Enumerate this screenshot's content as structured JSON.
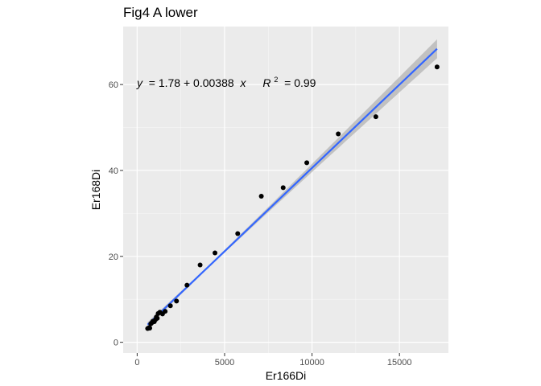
{
  "chart_data": {
    "type": "scatter",
    "title": "Fig4 A lower",
    "xlabel": "Er166Di",
    "ylabel": "Er168Di",
    "xlim": [
      -800,
      17800
    ],
    "ylim": [
      -2.5,
      73.5
    ],
    "x_ticks": [
      0,
      5000,
      10000,
      15000
    ],
    "y_ticks": [
      0,
      20,
      40,
      60
    ],
    "x_tick_labels": [
      "0",
      "5000",
      "10000",
      "15000"
    ],
    "y_tick_labels": [
      "0",
      "20",
      "40",
      "60"
    ],
    "grid": true,
    "legend": "none",
    "colors": {
      "panel": "#ebebeb",
      "grid_major": "#ffffff",
      "points": "#000000",
      "fit_line": "#3366ff",
      "confidence_band": "#b3b3b3"
    },
    "points": [
      {
        "x": 600,
        "y": 3.2
      },
      {
        "x": 680,
        "y": 3.4
      },
      {
        "x": 720,
        "y": 3.3
      },
      {
        "x": 780,
        "y": 4.3
      },
      {
        "x": 850,
        "y": 4.6
      },
      {
        "x": 900,
        "y": 4.9
      },
      {
        "x": 980,
        "y": 4.8
      },
      {
        "x": 1050,
        "y": 5.3
      },
      {
        "x": 1100,
        "y": 5.9
      },
      {
        "x": 1150,
        "y": 5.6
      },
      {
        "x": 1200,
        "y": 6.7
      },
      {
        "x": 1300,
        "y": 7.0
      },
      {
        "x": 1450,
        "y": 6.6
      },
      {
        "x": 1600,
        "y": 7.2
      },
      {
        "x": 1900,
        "y": 8.5
      },
      {
        "x": 2250,
        "y": 9.6
      },
      {
        "x": 2850,
        "y": 13.3
      },
      {
        "x": 3600,
        "y": 18.0
      },
      {
        "x": 4450,
        "y": 20.8
      },
      {
        "x": 5750,
        "y": 25.3
      },
      {
        "x": 7100,
        "y": 34.0
      },
      {
        "x": 8350,
        "y": 36.0
      },
      {
        "x": 9700,
        "y": 41.8
      },
      {
        "x": 11500,
        "y": 48.5
      },
      {
        "x": 13650,
        "y": 52.5
      },
      {
        "x": 17150,
        "y": 64.1
      }
    ],
    "fit": {
      "method": "lm",
      "intercept": 1.78,
      "slope": 0.00388,
      "x_range": [
        600,
        17150
      ],
      "band_halfwidth_at_max": 2.2
    },
    "annotation": {
      "x": 0,
      "y": 60,
      "lhs": "y",
      "eq_mid": " = 1.78 + 0.00388 ",
      "x_var": "x",
      "r2_base": "R",
      "r2_exp": "2",
      "r2_value": " = 0.99"
    }
  }
}
